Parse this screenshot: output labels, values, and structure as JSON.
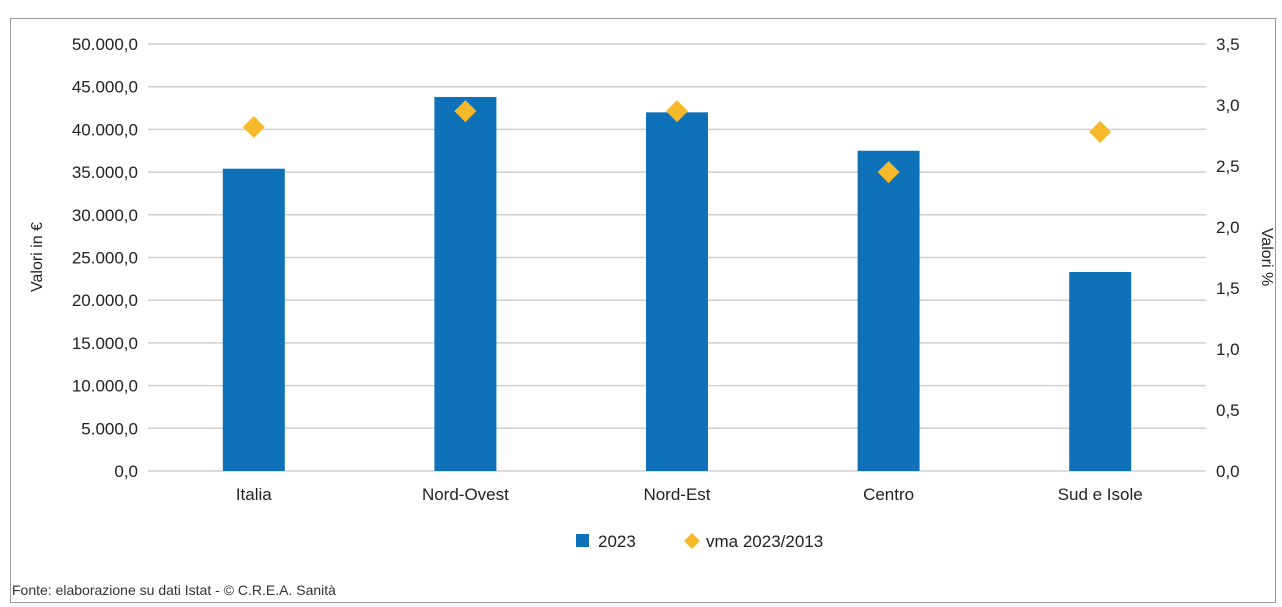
{
  "chart_data": {
    "type": "bar",
    "categories": [
      "Italia",
      "Nord-Ovest",
      "Nord-Est",
      "Centro",
      "Sud e Isole"
    ],
    "series": [
      {
        "name": "2023",
        "type": "bar",
        "axis": "left",
        "color": "#0f72b9",
        "values": [
          35400,
          43800,
          42000,
          37500,
          23300
        ]
      },
      {
        "name": "vma 2023/2013",
        "type": "scatter",
        "marker": "diamond",
        "axis": "right",
        "color": "#f6b92b",
        "values": [
          2.82,
          2.95,
          2.95,
          2.45,
          2.78
        ]
      }
    ],
    "ylabel": "Valori in €",
    "y2label": "Valori %",
    "ylim": [
      0,
      50000
    ],
    "y2lim": [
      0,
      3.5
    ],
    "yticks": [
      "0,0",
      "5.000,0",
      "10.000,0",
      "15.000,0",
      "20.000,0",
      "25.000,0",
      "30.000,0",
      "35.000,0",
      "40.000,0",
      "45.000,0",
      "50.000,0"
    ],
    "y2ticks": [
      "0,0",
      "0,5",
      "1,0",
      "1,5",
      "2,0",
      "2,5",
      "3,0",
      "3,5"
    ],
    "grid": true,
    "legend_position": "bottom"
  },
  "source_note": "Fonte: elaborazione su dati Istat - © C.R.E.A. Sanità",
  "colors": {
    "bar": "#0f72b9",
    "diamond": "#f6b92b",
    "grid": "#d0d0d0"
  }
}
